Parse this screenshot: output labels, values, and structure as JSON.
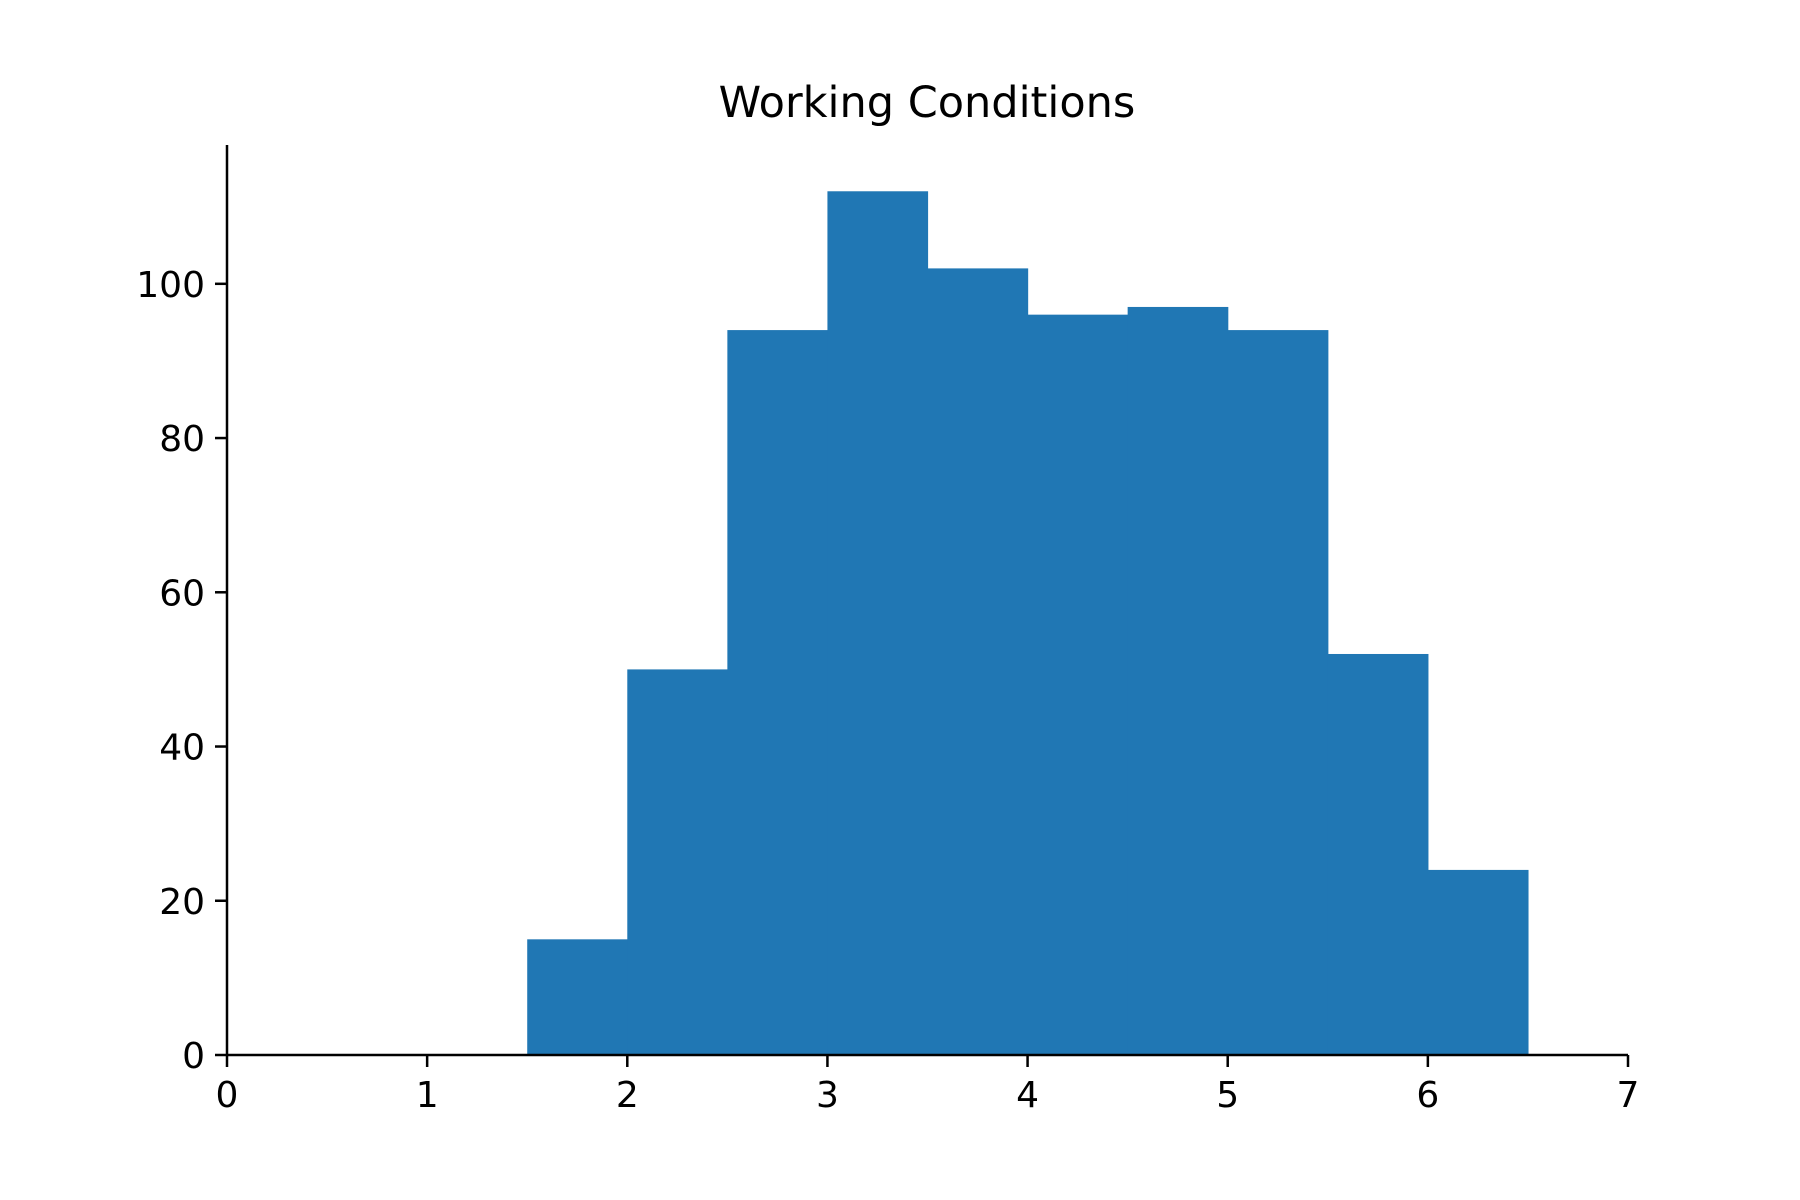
{
  "chart_data": {
    "type": "bar",
    "subtype": "histogram",
    "title": "Working Conditions",
    "xlabel": "",
    "ylabel": "",
    "bins": [
      {
        "start": 1.5,
        "end": 2.0,
        "count": 15
      },
      {
        "start": 2.0,
        "end": 2.5,
        "count": 50
      },
      {
        "start": 2.5,
        "end": 3.0,
        "count": 94
      },
      {
        "start": 3.0,
        "end": 3.5,
        "count": 112
      },
      {
        "start": 3.5,
        "end": 4.0,
        "count": 102
      },
      {
        "start": 4.0,
        "end": 4.5,
        "count": 96
      },
      {
        "start": 4.5,
        "end": 5.0,
        "count": 97
      },
      {
        "start": 5.0,
        "end": 5.5,
        "count": 94
      },
      {
        "start": 5.5,
        "end": 6.0,
        "count": 52
      },
      {
        "start": 6.0,
        "end": 6.5,
        "count": 24
      }
    ],
    "xlim": [
      0,
      7
    ],
    "ylim": [
      0,
      118
    ],
    "xticks": [
      "0",
      "1",
      "2",
      "3",
      "4",
      "5",
      "6",
      "7"
    ],
    "yticks": [
      "0",
      "20",
      "40",
      "60",
      "80",
      "100"
    ],
    "grid": false,
    "spines": [
      "left",
      "bottom"
    ],
    "bar_color": "#2077b4"
  }
}
